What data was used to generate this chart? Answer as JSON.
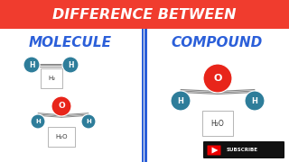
{
  "title": "DIFFERENCE BETWEEN",
  "title_bg": "#F03C2E",
  "title_color": "#FFFFFF",
  "left_label": "MOLECULE",
  "right_label": "COMPOUND",
  "label_color": "#2B5FD9",
  "bg_color": "#F0F0F0",
  "panel_color": "#F5F5F5",
  "divider_color": "#2B5FD9",
  "atom_teal": "#2E7D9A",
  "atom_red": "#E8251A",
  "bond_color": "#888888",
  "h2_label": "H₂",
  "h2o_label": "H₂O",
  "subscribe_bg": "#111111",
  "subscribe_color": "#FFFFFF",
  "yt_red": "#EE0000"
}
